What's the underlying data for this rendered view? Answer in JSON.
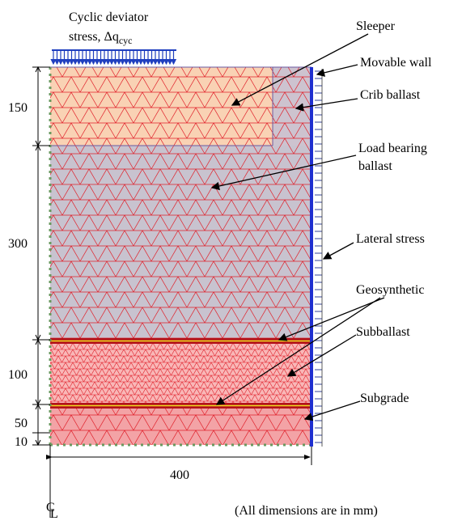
{
  "load": {
    "line1": "Cyclic deviator",
    "line2": "stress, Δq",
    "subscript": "cyc"
  },
  "labels": {
    "sleeper": "Sleeper",
    "movable_wall": "Movable wall",
    "crib_ballast": "Crib ballast",
    "load_bearing_1": "Load bearing",
    "load_bearing_2": "ballast",
    "lateral_stress": "Lateral stress",
    "geosynthetic": "Geosynthetic",
    "subballast": "Subballast",
    "subgrade": "Subgrade"
  },
  "dimensions": {
    "d1": "150",
    "d2": "300",
    "d3": "100",
    "d4": "50",
    "d5": "10",
    "width": "400"
  },
  "centerline": {
    "c": "C",
    "l": "L"
  },
  "note": "(All dimensions are in mm)"
}
